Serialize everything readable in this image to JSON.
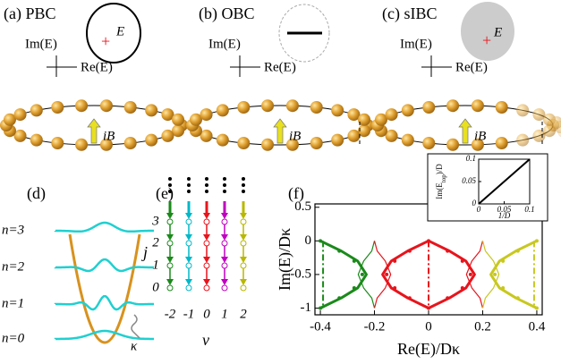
{
  "panel_a": {
    "label": "(a) PBC",
    "energy": "E",
    "im_axis": "Im(E)",
    "re_axis": "Re(E)",
    "field": "iB"
  },
  "panel_b": {
    "label": "(b) OBC",
    "im_axis": "Im(E)",
    "re_axis": "Re(E)",
    "field": "iB"
  },
  "panel_c": {
    "label": "(c) sIBC",
    "energy": "E",
    "im_axis": "Im(E)",
    "re_axis": "Re(E)",
    "field": "iB"
  },
  "panel_d": {
    "label": "(d)",
    "levels": [
      "n=3",
      "n=2",
      "n=1",
      "n=0"
    ],
    "decay": "κ"
  },
  "panel_e": {
    "label": "(e)",
    "y_label": "j",
    "x_label": "ν",
    "j_labels": [
      "3",
      "2",
      "1",
      "0"
    ],
    "nu_labels": [
      "-2",
      "-1",
      "0",
      "1",
      "2"
    ]
  },
  "chart_data": {
    "type": "line",
    "label": "(f)",
    "xlabel": "Re(E)/Dκ",
    "ylabel": "Im(E)/Dκ",
    "xlim": [
      -0.42,
      0.42
    ],
    "ylim": [
      -1.1,
      0.55
    ],
    "xticks": [
      -0.4,
      -0.2,
      0,
      0.2,
      0.4
    ],
    "yticks": [
      0.5,
      0,
      -0.5,
      -1
    ],
    "series": [
      {
        "color": "#1a8a1a",
        "style": "thick",
        "x": [
          -0.4,
          -0.323,
          -0.262,
          -0.23,
          -0.262,
          -0.323,
          -0.4
        ],
        "values": [
          0,
          -0.15,
          -0.3,
          -0.5,
          -0.7,
          -0.85,
          -1
        ]
      },
      {
        "color": "#1a8a1a",
        "style": "thin",
        "x": [
          -0.2,
          -0.21,
          -0.24,
          -0.26,
          -0.24,
          -0.21,
          -0.2
        ],
        "values": [
          0,
          -0.15,
          -0.3,
          -0.5,
          -0.7,
          -0.85,
          -1
        ]
      },
      {
        "color": "#1a8a1a",
        "style": "dots",
        "x": [
          -0.4,
          -0.33,
          -0.275,
          -0.245,
          -0.275,
          -0.33,
          -0.4
        ],
        "values": [
          0,
          -0.15,
          -0.3,
          -0.5,
          -0.7,
          -0.85,
          -1
        ]
      },
      {
        "color": "#1a8a1a",
        "style": "dashdot",
        "x": [
          -0.39,
          -0.39
        ],
        "values": [
          0,
          -1
        ]
      },
      {
        "color": "#e8141c",
        "style": "thick",
        "x": [
          0,
          -0.077,
          -0.138,
          -0.17,
          -0.138,
          -0.077,
          0
        ],
        "values": [
          0,
          -0.15,
          -0.3,
          -0.5,
          -0.7,
          -0.85,
          -1
        ]
      },
      {
        "color": "#e8141c",
        "style": "thick",
        "x": [
          0,
          0.077,
          0.138,
          0.17,
          0.138,
          0.077,
          0
        ],
        "values": [
          0,
          -0.15,
          -0.3,
          -0.5,
          -0.7,
          -0.85,
          -1
        ]
      },
      {
        "color": "#e8141c",
        "style": "thin",
        "x": [
          -0.2,
          -0.19,
          -0.16,
          -0.14,
          -0.16,
          -0.19,
          -0.2
        ],
        "values": [
          0,
          -0.15,
          -0.3,
          -0.5,
          -0.7,
          -0.85,
          -1
        ]
      },
      {
        "color": "#e8141c",
        "style": "thin",
        "x": [
          0.2,
          0.19,
          0.16,
          0.14,
          0.16,
          0.19,
          0.2
        ],
        "values": [
          0,
          -0.15,
          -0.3,
          -0.5,
          -0.7,
          -0.85,
          -1
        ]
      },
      {
        "color": "#e8141c",
        "style": "dots",
        "x": [
          0,
          -0.07,
          -0.125,
          -0.155,
          -0.125,
          -0.07,
          0
        ],
        "values": [
          0,
          -0.15,
          -0.3,
          -0.5,
          -0.7,
          -0.85,
          -1
        ]
      },
      {
        "color": "#e8141c",
        "style": "dots",
        "x": [
          0.07,
          0.125,
          0.155,
          0.125,
          0.07
        ],
        "values": [
          -0.15,
          -0.3,
          -0.5,
          -0.7,
          -0.85
        ]
      },
      {
        "color": "#e8141c",
        "style": "dashdot",
        "x": [
          0,
          0
        ],
        "values": [
          0,
          -1
        ]
      },
      {
        "color": "#c8c81e",
        "style": "thick",
        "x": [
          0.4,
          0.323,
          0.262,
          0.23,
          0.262,
          0.323,
          0.4
        ],
        "values": [
          0,
          -0.15,
          -0.3,
          -0.5,
          -0.7,
          -0.85,
          -1
        ]
      },
      {
        "color": "#c8c81e",
        "style": "thin",
        "x": [
          0.2,
          0.21,
          0.24,
          0.26,
          0.24,
          0.21,
          0.2
        ],
        "values": [
          0,
          -0.15,
          -0.3,
          -0.5,
          -0.7,
          -0.85,
          -1
        ]
      },
      {
        "color": "#c8c81e",
        "style": "dots",
        "x": [
          0.4,
          0.33,
          0.275,
          0.245,
          0.275,
          0.33,
          0.4
        ],
        "values": [
          0,
          -0.15,
          -0.3,
          -0.5,
          -0.7,
          -0.85,
          -1
        ]
      },
      {
        "color": "#c8c81e",
        "style": "dashdot",
        "x": [
          0.39,
          0.39
        ],
        "values": [
          0,
          -1
        ]
      }
    ],
    "inset": {
      "xlabel": "1/D",
      "ylabel_parts": [
        "Im(E",
        "top",
        ")/D"
      ],
      "xlim": [
        0,
        0.1
      ],
      "ylim": [
        0,
        0.1
      ],
      "xticks": [
        0,
        0.05,
        0.1
      ],
      "yticks": [
        0,
        0.05,
        0.1
      ],
      "x": [
        0,
        0.1
      ],
      "values": [
        0,
        0.1
      ],
      "color": "#000000"
    }
  }
}
